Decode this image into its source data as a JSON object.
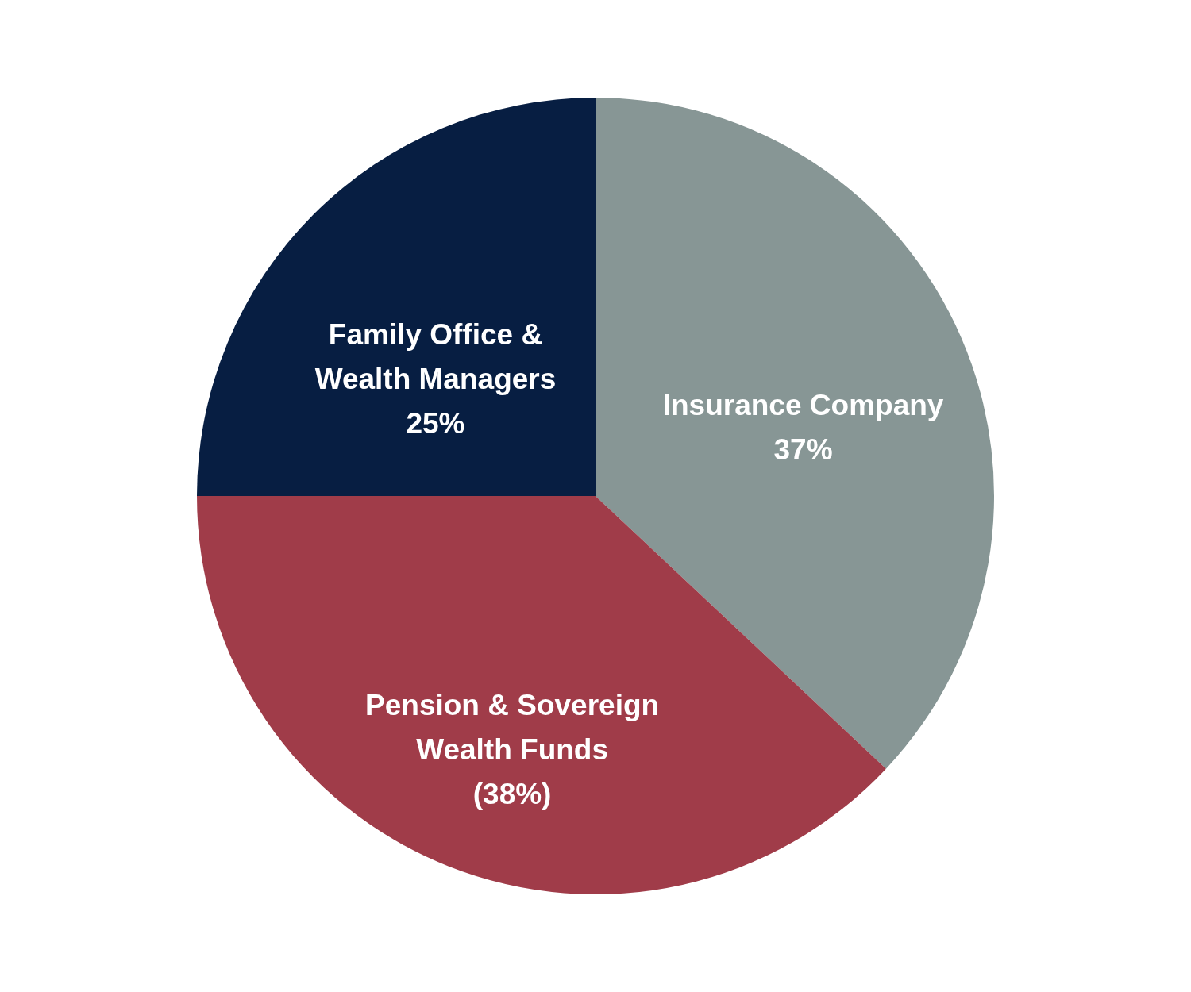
{
  "chart_data": {
    "type": "pie",
    "categories": [
      "Insurance Company",
      "Pension & Sovereign Wealth Funds",
      "Family Office & Wealth Managers"
    ],
    "values": [
      37,
      38,
      25
    ],
    "colors": [
      "#879695",
      "#a03c49",
      "#071e42"
    ],
    "value_labels": [
      "37%",
      "(38%)",
      "25%"
    ]
  }
}
